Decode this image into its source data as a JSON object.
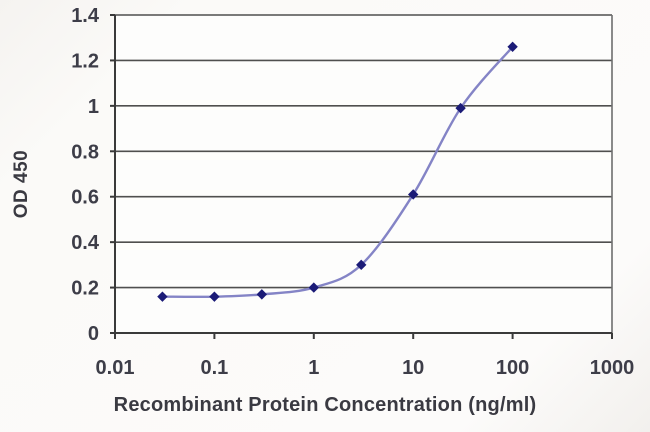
{
  "figure": {
    "background": "#f5f3f0",
    "plot_background": "#fdfdfc"
  },
  "chart_data": {
    "type": "line",
    "title": "",
    "xlabel": "Recombinant Protein Concentration (ng/ml)",
    "ylabel": "OD 450",
    "x_scale": "log",
    "xlim": [
      0.01,
      1000
    ],
    "ylim": [
      0,
      1.4
    ],
    "x_ticks": {
      "values": [
        0.01,
        0.1,
        1,
        10,
        100,
        1000
      ],
      "labels": [
        "0.01",
        "0.1",
        "1",
        "10",
        "100",
        "1000"
      ]
    },
    "y_ticks": {
      "values": [
        0,
        0.2,
        0.4,
        0.6,
        0.8,
        1,
        1.2,
        1.4
      ],
      "labels": [
        "0",
        "0.2",
        "0.4",
        "0.6",
        "0.8",
        "1",
        "1.2",
        "1.4"
      ]
    },
    "grid": "horizontal",
    "legend": "none",
    "series": [
      {
        "name": "OD 450",
        "x": [
          0.03,
          0.1,
          0.3,
          1,
          3,
          10,
          30,
          100
        ],
        "y": [
          0.16,
          0.16,
          0.17,
          0.2,
          0.3,
          0.61,
          0.99,
          1.26
        ],
        "line_color": "#8484c6",
        "marker": "diamond",
        "marker_color": "#1b1b77"
      }
    ],
    "colors": {
      "grid": "#4f4f4f",
      "axis": "#3a3a3a",
      "border": "#6e6e6e",
      "tick_label": "#3d3d48",
      "axis_label": "#3a3a42"
    }
  }
}
